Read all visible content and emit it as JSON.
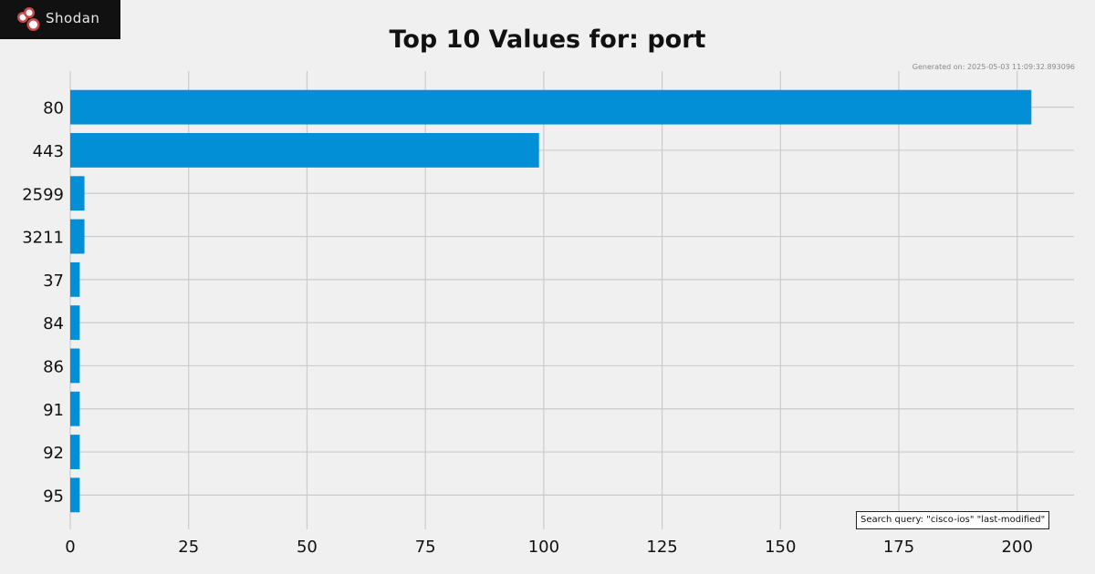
{
  "logo": {
    "text": "Shodan"
  },
  "chart_data": {
    "type": "bar",
    "orientation": "horizontal",
    "title": "Top 10 Values for: port",
    "categories": [
      "80",
      "443",
      "2599",
      "3211",
      "37",
      "84",
      "86",
      "91",
      "92",
      "95"
    ],
    "values": [
      203,
      99,
      3,
      3,
      2,
      2,
      2,
      2,
      2,
      2
    ],
    "xlim": [
      0,
      212
    ],
    "xticks": [
      "0",
      "25",
      "50",
      "75",
      "100",
      "125",
      "150",
      "175",
      "200"
    ],
    "grid": true,
    "bar_color": "#038fd6"
  },
  "generated_text": "Generated on: 2025-05-03 11:09:32.893096",
  "query_text": "Search query: \"cisco-ios\" \"last-modified\""
}
